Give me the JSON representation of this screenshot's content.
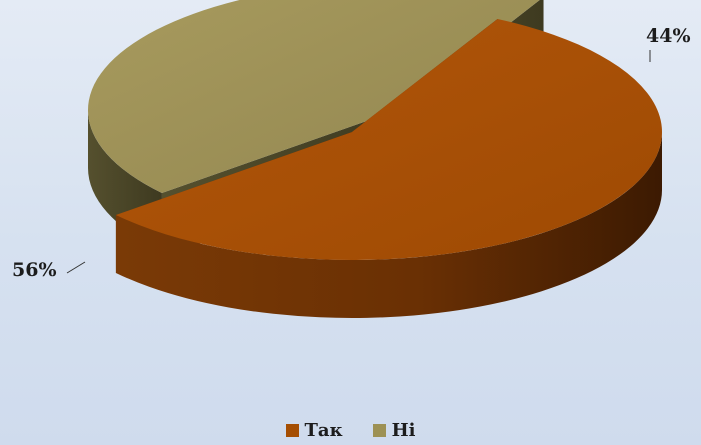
{
  "chart_data": {
    "type": "pie",
    "title": "",
    "categories": [
      "Так",
      "Ні"
    ],
    "values": [
      56,
      44
    ],
    "value_labels": [
      "56%",
      "44%"
    ],
    "colors": [
      "#a54e02",
      "#9d9154"
    ],
    "legend_position": "bottom",
    "style": "3d exploded pie"
  }
}
